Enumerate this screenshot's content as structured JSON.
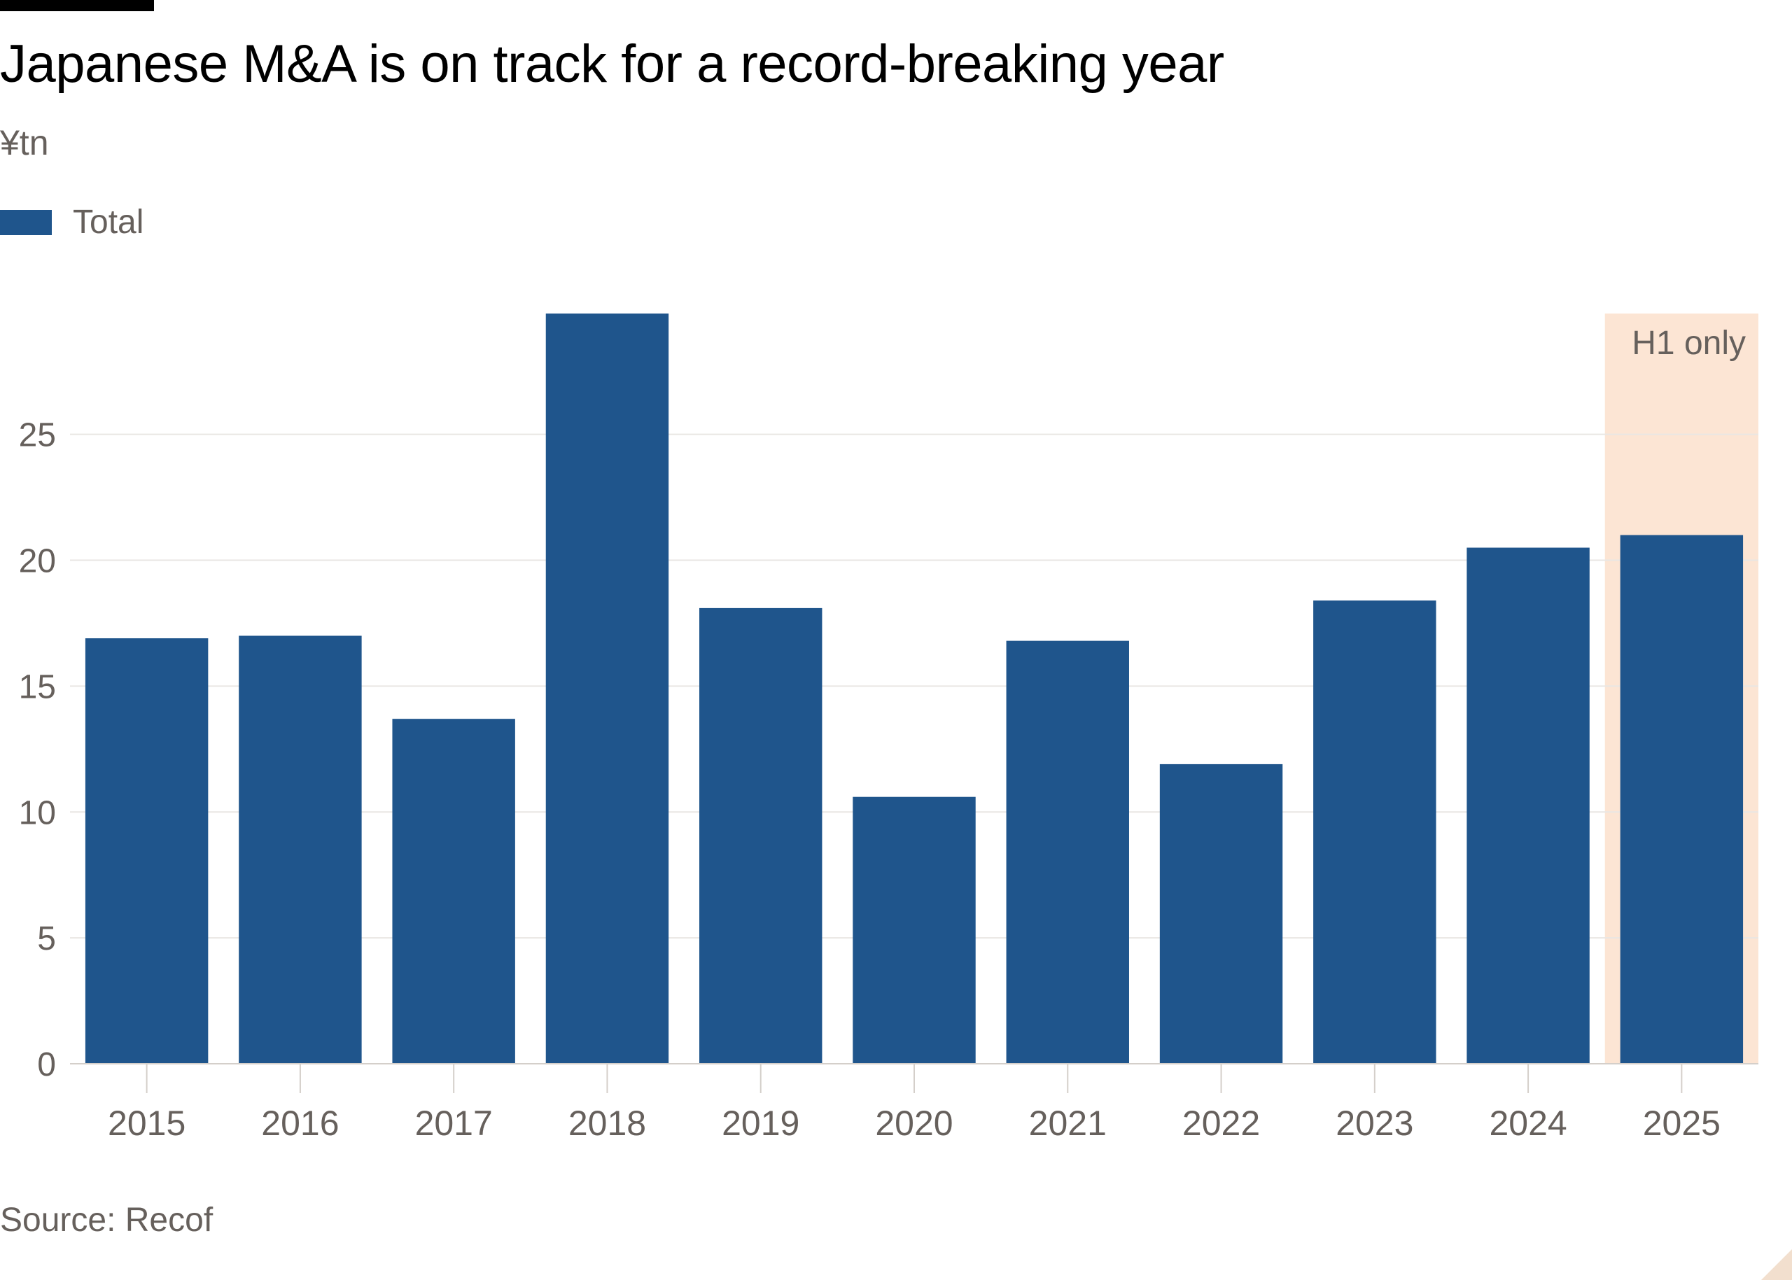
{
  "title": "Japanese M&A is on track for a record-breaking year",
  "subtitle": "¥tn",
  "source": "Source: Recof",
  "colors": {
    "bar": "#1f558c",
    "highlight": "#fce5d4",
    "grid": "#e9e6e3",
    "axis": "#d4cfca",
    "text": "#66605c"
  },
  "legend": {
    "label": "Total"
  },
  "chart_data": {
    "type": "bar",
    "title": "Japanese M&A is on track for a record-breaking year",
    "subtitle": "¥tn",
    "xlabel": "",
    "ylabel": "",
    "categories": [
      "2015",
      "2016",
      "2017",
      "2018",
      "2019",
      "2020",
      "2021",
      "2022",
      "2023",
      "2024",
      "2025"
    ],
    "series": [
      {
        "name": "Total",
        "values": [
          16.9,
          17.0,
          13.7,
          29.8,
          18.1,
          10.6,
          16.8,
          11.9,
          18.4,
          20.5,
          21.0
        ]
      }
    ],
    "ylim": [
      0,
      29.8
    ],
    "yticks": [
      0,
      5,
      10,
      15,
      20,
      25
    ],
    "grid": true,
    "legend_position": "top-left",
    "annotations": [
      {
        "category": "2025",
        "text": "H1 only",
        "type": "highlight"
      }
    ]
  }
}
